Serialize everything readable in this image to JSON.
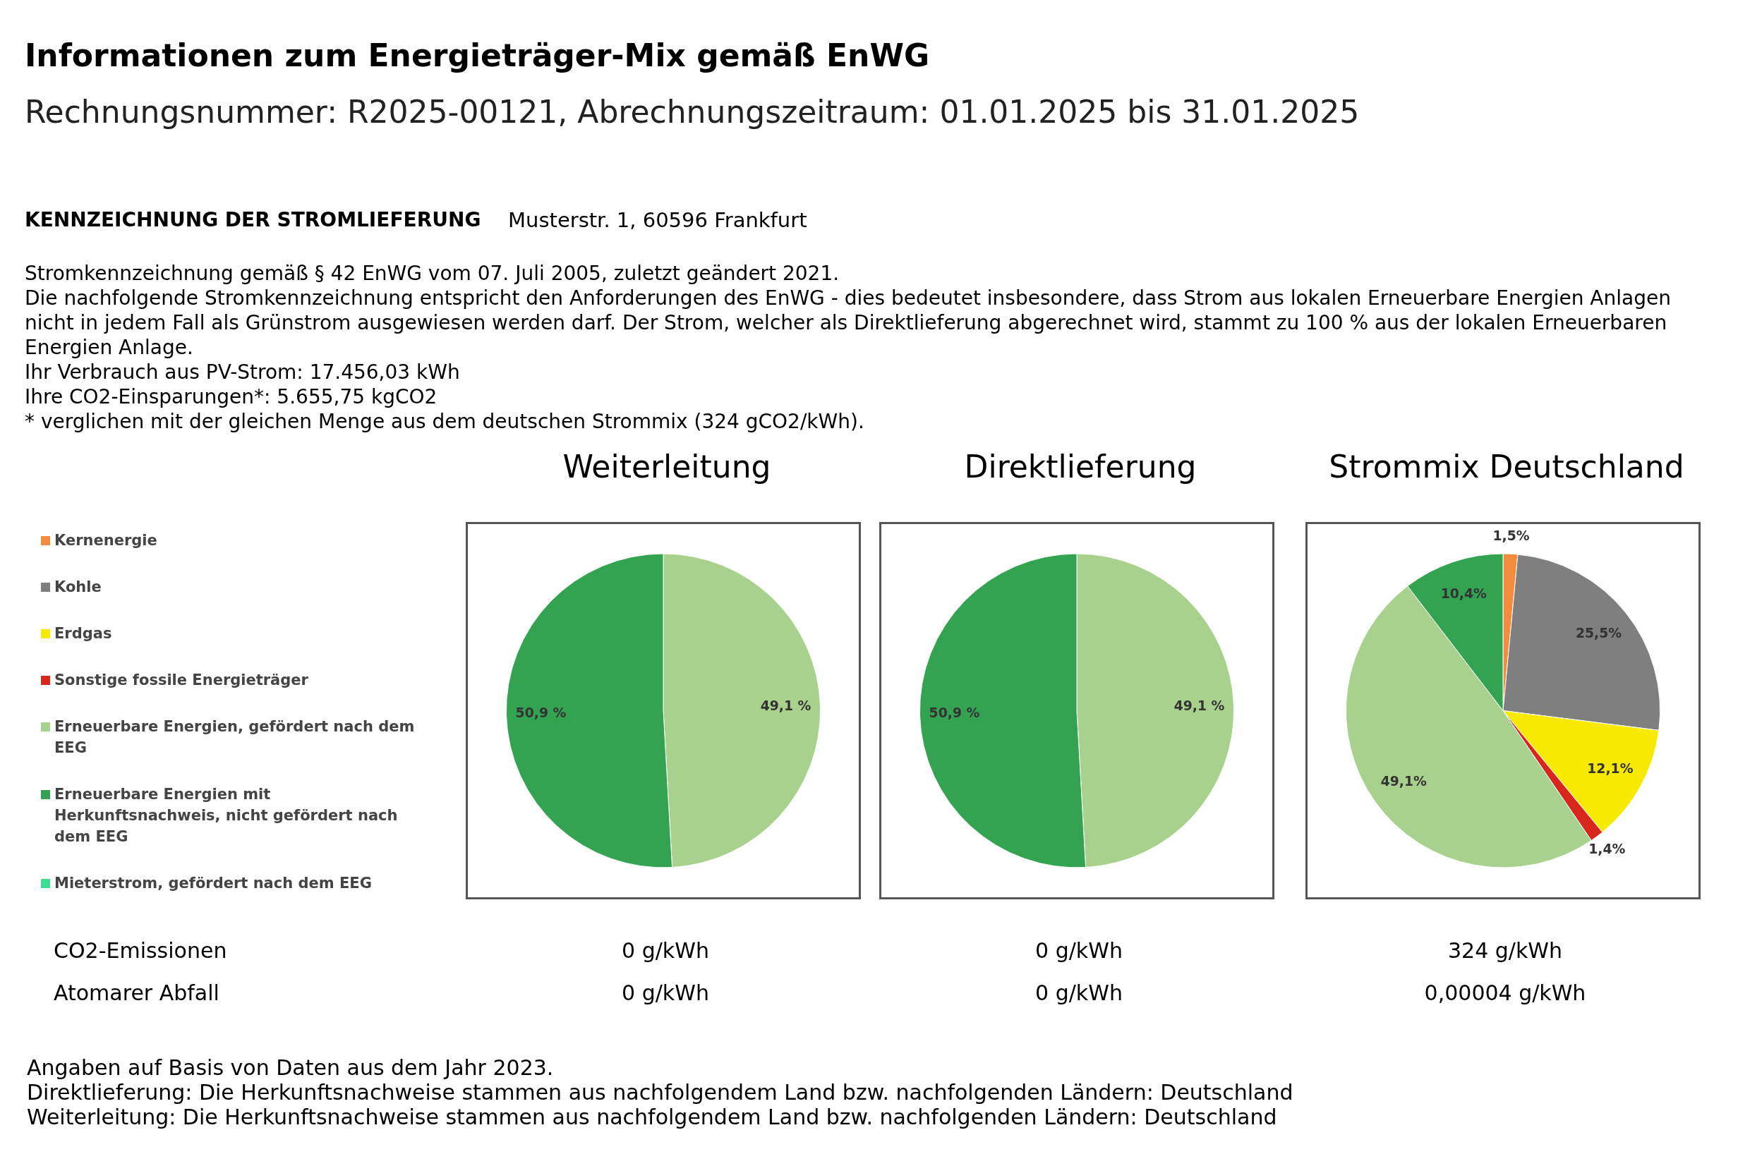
{
  "chart_data": [
    {
      "type": "other",
      "title": "Informationen zum Energieträger-Mix gemäß EnWG",
      "subtitle": "Rechnungsnummer: R2025-00121, Abrechnungszeitraum: 01.01.2025 bis 31.01.2025",
      "annotations": [
        "KENNZEICHNUNG DER STROMLIEFERUNG",
        "Musterstr. 1, 60596 Frankfurt",
        "Stromkennzeichnung gemäß § 42 EnWG vom 07. Juli 2005, zuletzt geändert 2021.",
        "Die nachfolgende Stromkennzeichnung entspricht den Anforderungen des EnWG - dies bedeutet insbesondere, dass Strom aus lokalen Erneuerbare Energien Anlagen nicht in jedem Fall als Grünstrom ausgewiesen werden darf. Der Strom, welcher als Direktlieferung abgerechnet wird, stammt zu 100 % aus der lokalen Erneuerbaren Energien Anlage.",
        "Ihr Verbrauch aus PV-Strom: 17.456,03 kWh",
        "Ihre CO2-Einsparungen*: 5.655,75 kgCO2",
        "* verglichen mit der gleichen Menge aus dem deutschen Strommix (324 gCO2/kWh).",
        "CO2-Emissionen",
        "Atomarer Abfall",
        "Angaben auf Basis von Daten aus dem Jahr 2023.",
        "Direktlieferung: Die Herkunftsnachweise stammen aus nachfolgendem Land bzw. nachfolgenden Ländern: Deutschland",
        "Weiterleitung: Die Herkunftsnachweise stammen aus nachfolgendem Land bzw. nachfolgenden Ländern: Deutschland"
      ]
    },
    {
      "type": "pie",
      "title": "Weiterleitung",
      "legend": "left",
      "categories": [
        "Kernenergie",
        "Kohle",
        "Erdgas",
        "Sonstige fossile Energieträger",
        "Erneuerbare Energien, gefördert nach dem EEG",
        "Erneuerbare Energien mit Herkunftsnachweis, nicht gefördert nach dem EEG",
        "Mieterstrom, gefördert nach dem EEG"
      ],
      "values": [
        0,
        0,
        0,
        0,
        49.1,
        50.9,
        0
      ],
      "colors": [
        "#f58b3d",
        "#7f7f7f",
        "#f7ea00",
        "#d9261c",
        "#a9d18e",
        "#33a352",
        "#3ddc97"
      ],
      "value_labels": [
        null,
        null,
        null,
        null,
        "49,1 %",
        "50,9 %",
        null
      ],
      "annotations": [
        "0 g/kWh",
        "0 g/kWh"
      ]
    },
    {
      "type": "pie",
      "title": "Direktlieferung",
      "values": [
        0,
        0,
        0,
        0,
        49.1,
        50.9,
        0
      ],
      "colors": [
        "#f58b3d",
        "#7f7f7f",
        "#f7ea00",
        "#d9261c",
        "#a9d18e",
        "#33a352",
        "#3ddc97"
      ],
      "value_labels": [
        null,
        null,
        null,
        null,
        "49,1 %",
        "50,9 %",
        null
      ],
      "annotations": [
        "0 g/kWh",
        "0 g/kWh"
      ]
    },
    {
      "type": "pie",
      "title": "Strommix Deutschland",
      "values": [
        1.5,
        25.5,
        12.1,
        1.4,
        49.1,
        10.4,
        0
      ],
      "colors": [
        "#f58b3d",
        "#7f7f7f",
        "#f7ea00",
        "#d9261c",
        "#a9d18e",
        "#33a352",
        "#3ddc97"
      ],
      "value_labels": [
        "1,5%",
        "25,5%",
        "12,1%",
        "1,4%",
        "49,1%",
        "10,4%",
        null
      ],
      "annotations": [
        "324 g/kWh",
        "0,00004 g/kWh"
      ]
    }
  ]
}
